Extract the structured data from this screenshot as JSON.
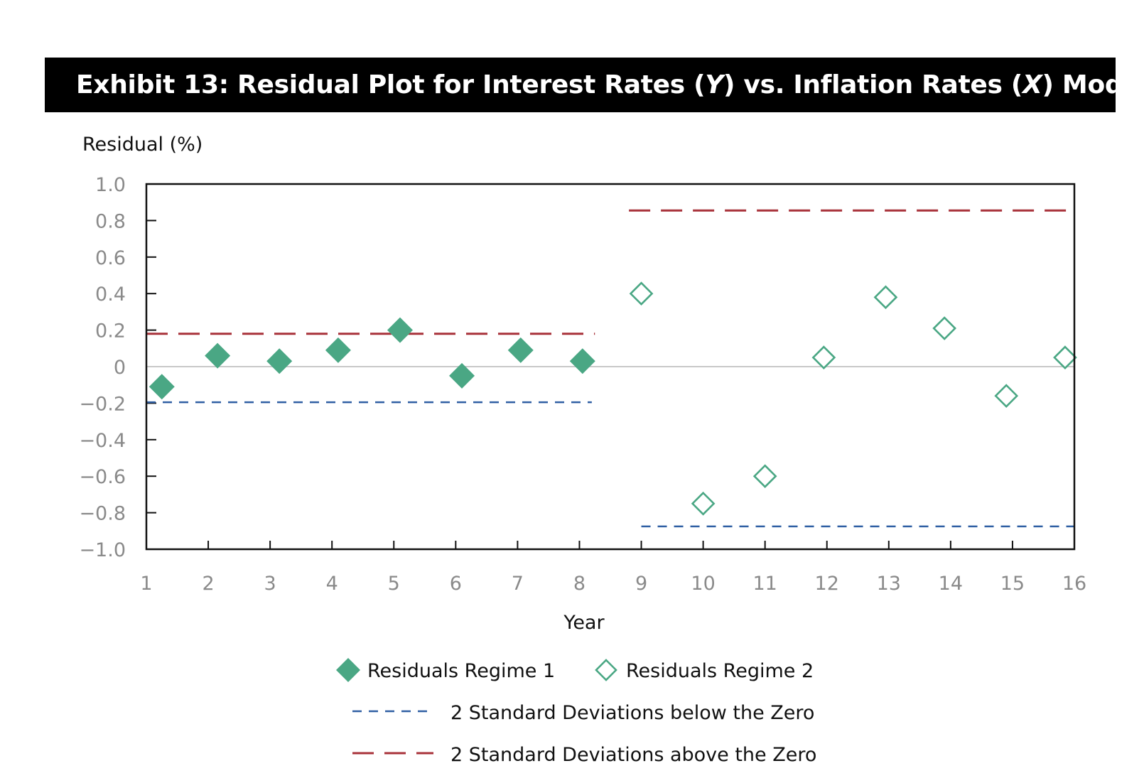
{
  "title": {
    "prefix": "Exhibit 13: Residual Plot for Interest Rates (",
    "y_var": "Y",
    "middle": ") vs. Inflation Rates (",
    "x_var": "X",
    "suffix": ") Model"
  },
  "colors": {
    "marker": "#4aa784",
    "upper_band": "#a8323a",
    "lower_band": "#2f5fa3",
    "zero_line": "#c8c8c8",
    "axis": "#111111",
    "tick_text": "#8a8a8a"
  },
  "chart_data": {
    "type": "scatter",
    "ylabel": "Residual (%)",
    "xlabel": "Year",
    "xlim": [
      1,
      16
    ],
    "ylim": [
      -1.0,
      1.0
    ],
    "x_ticks": [
      1,
      2,
      3,
      4,
      5,
      6,
      7,
      8,
      9,
      10,
      11,
      12,
      13,
      14,
      15,
      16
    ],
    "y_ticks": [
      {
        "value": 1.0,
        "label": "1.0"
      },
      {
        "value": 0.8,
        "label": "0.8"
      },
      {
        "value": 0.6,
        "label": "0.6"
      },
      {
        "value": 0.4,
        "label": "0.4"
      },
      {
        "value": 0.2,
        "label": "0.2"
      },
      {
        "value": 0.0,
        "label": "0"
      },
      {
        "value": -0.2,
        "label": "−0.2"
      },
      {
        "value": -0.4,
        "label": "−0.4"
      },
      {
        "value": -0.6,
        "label": "−0.6"
      },
      {
        "value": -0.8,
        "label": "−0.8"
      },
      {
        "value": -1.0,
        "label": "−1.0"
      }
    ],
    "series": [
      {
        "name": "Residuals Regime 1",
        "marker": "filled-diamond",
        "points": [
          {
            "x": 1.25,
            "y": -0.11
          },
          {
            "x": 2.15,
            "y": 0.06
          },
          {
            "x": 3.15,
            "y": 0.03
          },
          {
            "x": 4.1,
            "y": 0.09
          },
          {
            "x": 5.1,
            "y": 0.2
          },
          {
            "x": 6.1,
            "y": -0.05
          },
          {
            "x": 7.05,
            "y": 0.09
          },
          {
            "x": 8.05,
            "y": 0.03
          }
        ]
      },
      {
        "name": "Residuals Regime 2",
        "marker": "hollow-diamond",
        "points": [
          {
            "x": 9.0,
            "y": 0.4
          },
          {
            "x": 10.0,
            "y": -0.75
          },
          {
            "x": 11.0,
            "y": -0.6
          },
          {
            "x": 11.95,
            "y": 0.05
          },
          {
            "x": 12.95,
            "y": 0.38
          },
          {
            "x": 13.9,
            "y": 0.21
          },
          {
            "x": 14.9,
            "y": -0.16
          },
          {
            "x": 15.85,
            "y": 0.05
          }
        ]
      }
    ],
    "bands": [
      {
        "name": "2 Standard Deviations below the Zero",
        "style": "short-dash",
        "segments": [
          {
            "x_start": 1.0,
            "x_end": 8.2,
            "y": -0.195
          },
          {
            "x_start": 9.0,
            "x_end": 16.0,
            "y": -0.875
          }
        ]
      },
      {
        "name": "2 Standard Deviations above the Zero",
        "style": "long-dash",
        "segments": [
          {
            "x_start": 1.0,
            "x_end": 8.25,
            "y": 0.18
          },
          {
            "x_start": 8.8,
            "x_end": 16.0,
            "y": 0.855
          }
        ]
      }
    ],
    "zero_line": true,
    "grid": false,
    "legend_position": "bottom"
  }
}
